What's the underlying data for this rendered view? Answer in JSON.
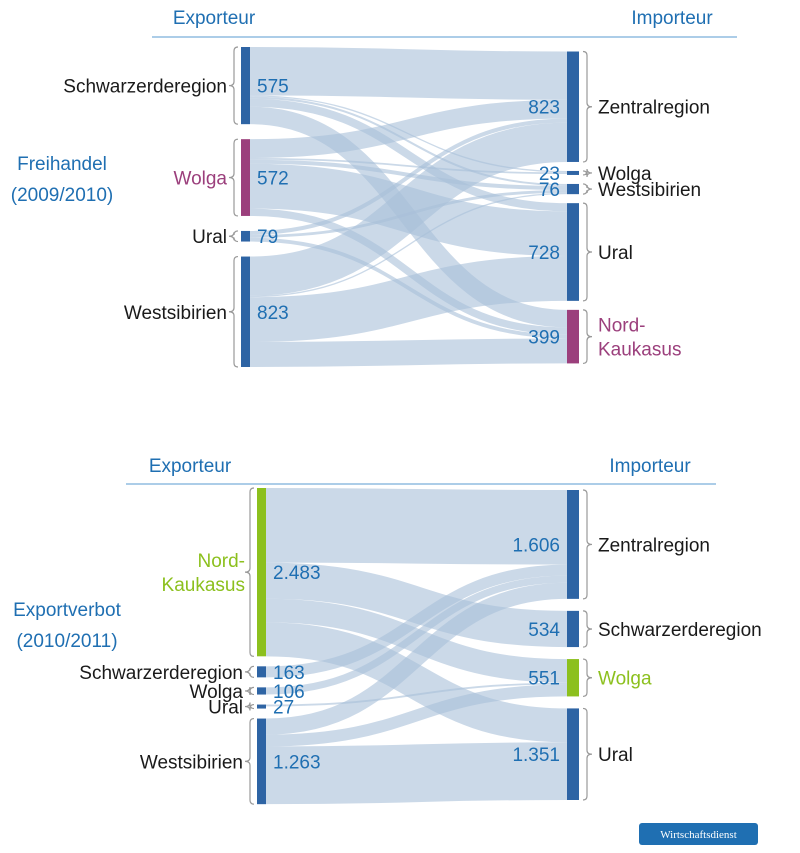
{
  "colors": {
    "node_default": "#2e64a4",
    "flow": "#a9bfd8",
    "accent_purple": "#9b3f7c",
    "accent_green": "#8cc01e",
    "header_blue": "#1f6fb2",
    "badge_bg": "#1f6fb2"
  },
  "badge": {
    "text": "Wirtschaftsdienst"
  },
  "chart_data": [
    {
      "type": "sankey",
      "scenario_label_1": "Freihandel",
      "scenario_label_2": "(2009/2010)",
      "exporter_header": "Exporteur",
      "importer_header": "Importeur",
      "sources": [
        {
          "name": "Schwarzerderegion",
          "value": 575,
          "value_label": "575"
        },
        {
          "name": "Wolga",
          "value": 572,
          "value_label": "572",
          "accent": "purple"
        },
        {
          "name": "Ural",
          "value": 79,
          "value_label": "79"
        },
        {
          "name": "Westsibirien",
          "value": 823,
          "value_label": "823"
        }
      ],
      "targets": [
        {
          "name": "Zentralregion",
          "value": 823,
          "value_label": "823"
        },
        {
          "name": "Wolga",
          "value": 23,
          "value_label": "23"
        },
        {
          "name": "Westsibirien",
          "value": 76,
          "value_label": "76"
        },
        {
          "name": "Ural",
          "value": 728,
          "value_label": "728"
        },
        {
          "name": "Nord-Kaukasus",
          "name_line1": "Nord-",
          "name_line2": "Kaukasus",
          "value": 399,
          "value_label": "399",
          "accent": "purple"
        }
      ],
      "links": [
        {
          "source": 0,
          "target": 0,
          "value": 360
        },
        {
          "source": 0,
          "target": 1,
          "value": 10
        },
        {
          "source": 0,
          "target": 2,
          "value": 15
        },
        {
          "source": 0,
          "target": 3,
          "value": 60
        },
        {
          "source": 0,
          "target": 4,
          "value": 130
        },
        {
          "source": 1,
          "target": 0,
          "value": 140
        },
        {
          "source": 1,
          "target": 1,
          "value": 13
        },
        {
          "source": 1,
          "target": 2,
          "value": 30
        },
        {
          "source": 1,
          "target": 3,
          "value": 334
        },
        {
          "source": 1,
          "target": 4,
          "value": 55
        },
        {
          "source": 2,
          "target": 0,
          "value": 30
        },
        {
          "source": 2,
          "target": 2,
          "value": 21
        },
        {
          "source": 2,
          "target": 4,
          "value": 28
        },
        {
          "source": 3,
          "target": 0,
          "value": 293
        },
        {
          "source": 3,
          "target": 2,
          "value": 10
        },
        {
          "source": 3,
          "target": 3,
          "value": 334
        },
        {
          "source": 3,
          "target": 4,
          "value": 186
        }
      ]
    },
    {
      "type": "sankey",
      "scenario_label_1": "Exportverbot",
      "scenario_label_2": "(2010/2011)",
      "exporter_header": "Exporteur",
      "importer_header": "Importeur",
      "sources": [
        {
          "name": "Nord-Kaukasus",
          "name_line1": "Nord-",
          "name_line2": "Kaukasus",
          "value": 2483,
          "value_label": "2.483",
          "accent": "green"
        },
        {
          "name": "Schwarzerderegion",
          "value": 163,
          "value_label": "163"
        },
        {
          "name": "Wolga",
          "value": 106,
          "value_label": "106"
        },
        {
          "name": "Ural",
          "value": 27,
          "value_label": "27"
        },
        {
          "name": "Westsibirien",
          "value": 1263,
          "value_label": "1.263"
        }
      ],
      "targets": [
        {
          "name": "Zentralregion",
          "value": 1606,
          "value_label": "1.606"
        },
        {
          "name": "Schwarzerderegion",
          "value": 534,
          "value_label": "534"
        },
        {
          "name": "Wolga",
          "value": 551,
          "value_label": "551",
          "accent": "green"
        },
        {
          "name": "Ural",
          "value": 1351,
          "value_label": "1.351"
        }
      ],
      "links": [
        {
          "source": 0,
          "target": 0,
          "value": 1100
        },
        {
          "source": 0,
          "target": 1,
          "value": 534
        },
        {
          "source": 0,
          "target": 2,
          "value": 349
        },
        {
          "source": 0,
          "target": 3,
          "value": 500
        },
        {
          "source": 1,
          "target": 0,
          "value": 163
        },
        {
          "source": 2,
          "target": 0,
          "value": 106
        },
        {
          "source": 3,
          "target": 2,
          "value": 27
        },
        {
          "source": 4,
          "target": 0,
          "value": 237
        },
        {
          "source": 4,
          "target": 2,
          "value": 175
        },
        {
          "source": 4,
          "target": 3,
          "value": 851
        }
      ]
    }
  ]
}
